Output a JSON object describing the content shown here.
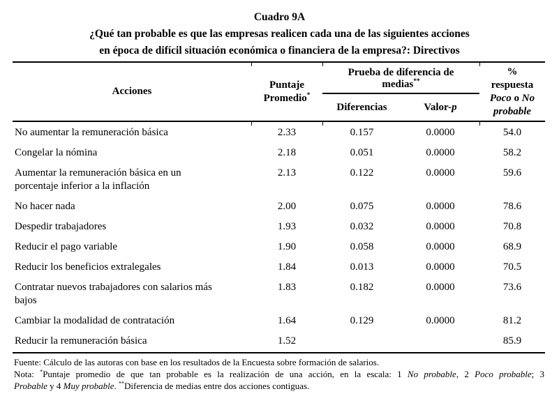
{
  "page": {
    "background": "#ffffff",
    "text_color": "#000000"
  },
  "title": {
    "line1": "Cuadro 9A",
    "line2": "¿Qué tan probable es que las empresas realicen cada una de las siguientes acciones",
    "line3": "en época de difícil situación económica o financiera de la empresa?: Directivos"
  },
  "table": {
    "header": {
      "acciones": "Acciones",
      "puntaje_segments": [
        {
          "t": "Puntaje Promedio"
        },
        {
          "t": "*",
          "sup": true
        }
      ],
      "prueba_segments": [
        {
          "t": "Prueba de diferencia de medias"
        },
        {
          "t": "**",
          "sup": true
        }
      ],
      "diferencias": "Diferencias",
      "valor_p_segments": [
        {
          "t": "Valor-"
        },
        {
          "t": "p",
          "i": true
        }
      ],
      "pct_segments": [
        {
          "t": "%"
        },
        {
          "br": true
        },
        {
          "t": "respuesta"
        },
        {
          "br": true
        },
        {
          "t": "Poco",
          "i": true
        },
        {
          "t": " o "
        },
        {
          "t": "No",
          "i": true
        },
        {
          "br": true
        },
        {
          "t": "probable",
          "i": true
        }
      ]
    },
    "rows": [
      {
        "accion": "No aumentar la remuneración básica",
        "puntaje": "2.33",
        "diferencia": "0.157",
        "valor_p": "0.0000",
        "pct": "54.0"
      },
      {
        "accion": "Congelar la nómina",
        "puntaje": "2.18",
        "diferencia": "0.051",
        "valor_p": "0.0000",
        "pct": "58.2"
      },
      {
        "accion": "Aumentar la remuneración básica en un porcentaje inferior a la inflación",
        "puntaje": "2.13",
        "diferencia": "0.122",
        "valor_p": "0.0000",
        "pct": "59.6"
      },
      {
        "accion": "No hacer nada",
        "puntaje": "2.00",
        "diferencia": "0.075",
        "valor_p": "0.0000",
        "pct": "78.6"
      },
      {
        "accion": "Despedir trabajadores",
        "puntaje": "1.93",
        "diferencia": "0.032",
        "valor_p": "0.0000",
        "pct": "70.8"
      },
      {
        "accion": "Reducir el pago variable",
        "puntaje": "1.90",
        "diferencia": "0.058",
        "valor_p": "0.0000",
        "pct": "68.9"
      },
      {
        "accion": "Reducir los beneficios extralegales",
        "puntaje": "1.84",
        "diferencia": "0.013",
        "valor_p": "0.0000",
        "pct": "70.5"
      },
      {
        "accion": "Contratar nuevos trabajadores con salarios más bajos",
        "puntaje": "1.83",
        "diferencia": "0.182",
        "valor_p": "0.0000",
        "pct": "73.6"
      },
      {
        "accion": "Cambiar la modalidad de contratación",
        "puntaje": "1.64",
        "diferencia": "0.129",
        "valor_p": "0.0000",
        "pct": "81.2"
      },
      {
        "accion": "Reducir la remuneración básica",
        "puntaje": "1.52",
        "diferencia": "",
        "valor_p": "",
        "pct": "85.9"
      }
    ]
  },
  "footnotes": {
    "fuente": "Fuente: Cálculo de las autoras con base en los resultados de la Encuesta sobre formación de salarios.",
    "nota_line1_segments": [
      {
        "t": "Nota: "
      },
      {
        "t": "*",
        "sup": true
      },
      {
        "t": "Puntaje promedio de que tan probable es la realización de una acción, en la escala: 1 "
      },
      {
        "t": "No probable",
        "i": true
      },
      {
        "t": ", 2 "
      },
      {
        "t": "Poco probable",
        "i": true
      },
      {
        "t": "; 3"
      }
    ],
    "nota_line2_segments": [
      {
        "t": "Probable",
        "i": true
      },
      {
        "t": " y 4 "
      },
      {
        "t": "Muy probable",
        "i": true
      },
      {
        "t": ". "
      },
      {
        "t": "**",
        "sup": true
      },
      {
        "t": "Diferencia de medias entre dos acciones contiguas."
      }
    ]
  }
}
